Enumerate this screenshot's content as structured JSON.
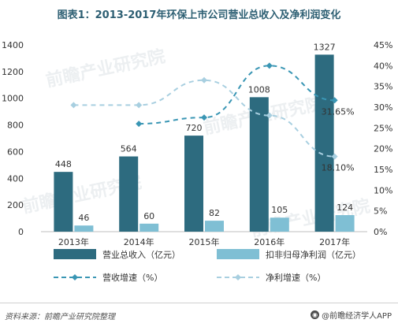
{
  "chart_data": {
    "type": "bar",
    "title": "图表1：2013-2017年环保上市公司营业总收入及净利润变化",
    "categories": [
      "2013年",
      "2014年",
      "2015年",
      "2016年",
      "2017年"
    ],
    "series": [
      {
        "name": "营业总收入（亿元）",
        "type": "bar",
        "axis": "left",
        "color": "#2d6b7f",
        "values": [
          448,
          564,
          720,
          1008,
          1327
        ],
        "labels": [
          "448",
          "564",
          "720",
          "1008",
          "1327"
        ]
      },
      {
        "name": "扣非归母净利润（亿元）",
        "type": "bar",
        "axis": "left",
        "color": "#7fbfd4",
        "values": [
          46,
          60,
          82,
          105,
          124
        ],
        "labels": [
          "46",
          "60",
          "82",
          "105",
          "124"
        ]
      },
      {
        "name": "营收增速（%）",
        "type": "line",
        "axis": "right",
        "color": "#3a96b4",
        "dash": "dashed",
        "values": [
          null,
          26,
          27.5,
          40,
          31.65
        ]
      },
      {
        "name": "净利增速（%）",
        "type": "line",
        "axis": "right",
        "color": "#a8cfe0",
        "dash": "dashed",
        "values": [
          30.5,
          30.5,
          36.5,
          28,
          18.1
        ]
      }
    ],
    "annotations": [
      {
        "series": "营收增速（%）",
        "index": 4,
        "text": "31.65%"
      },
      {
        "series": "净利增速（%）",
        "index": 4,
        "text": "18.10%"
      }
    ],
    "yleft": {
      "ticks": [
        "0",
        "200",
        "400",
        "600",
        "800",
        "1000",
        "1200",
        "1400"
      ],
      "lim": [
        0,
        1400
      ]
    },
    "yright": {
      "ticks": [
        "0%",
        "5%",
        "10%",
        "15%",
        "20%",
        "25%",
        "30%",
        "35%",
        "40%",
        "45%"
      ],
      "lim": [
        0,
        45
      ]
    },
    "grid": false,
    "legend": "bottom"
  },
  "footer": {
    "source": "资料来源：前瞻产业研究院整理",
    "brand": "@前瞻经济学人APP"
  }
}
